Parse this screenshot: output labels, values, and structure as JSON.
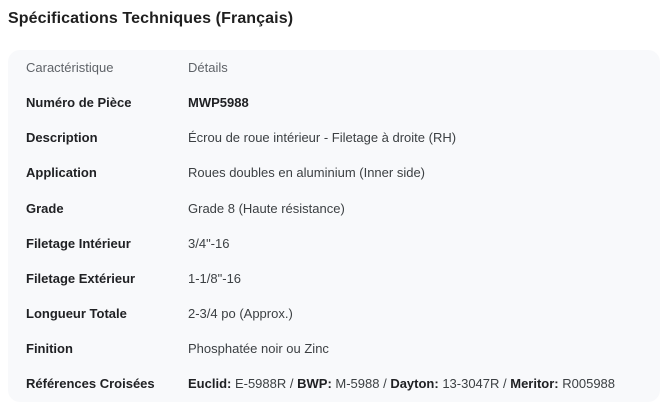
{
  "page": {
    "title": "Spécifications Techniques (Français)"
  },
  "table": {
    "header": {
      "label": "Caractéristique",
      "value": "Détails"
    },
    "rows": [
      {
        "label": "Numéro de Pièce",
        "value": "MWP5988",
        "value_bold": true
      },
      {
        "label": "Description",
        "value": "Écrou de roue intérieur - Filetage à droite (RH)"
      },
      {
        "label": "Application",
        "value": "Roues doubles en aluminium (Inner side)"
      },
      {
        "label": "Grade",
        "value": "Grade 8 (Haute résistance)"
      },
      {
        "label": "Filetage Intérieur",
        "value": "3/4\"-16"
      },
      {
        "label": "Filetage Extérieur",
        "value": "1-1/8\"-16"
      },
      {
        "label": "Longueur Totale",
        "value": "2-3/4 po (Approx.)"
      },
      {
        "label": "Finition",
        "value": "Phosphatée noir ou Zinc"
      },
      {
        "label": "Références Croisées",
        "segments": [
          {
            "text": "Euclid: ",
            "bold": true
          },
          {
            "text": "E-5988R / ",
            "bold": false
          },
          {
            "text": "BWP: ",
            "bold": true
          },
          {
            "text": "M-5988 / ",
            "bold": false
          },
          {
            "text": "Dayton: ",
            "bold": true
          },
          {
            "text": "13-3047R / ",
            "bold": false
          },
          {
            "text": "Meritor: ",
            "bold": true
          },
          {
            "text": "R005988",
            "bold": false
          }
        ]
      }
    ]
  },
  "colors": {
    "table_background": "#f8f9fb",
    "title_text": "#1f1f1f",
    "header_text": "#5f6368",
    "label_text": "#202124",
    "value_text": "#3c4043"
  }
}
